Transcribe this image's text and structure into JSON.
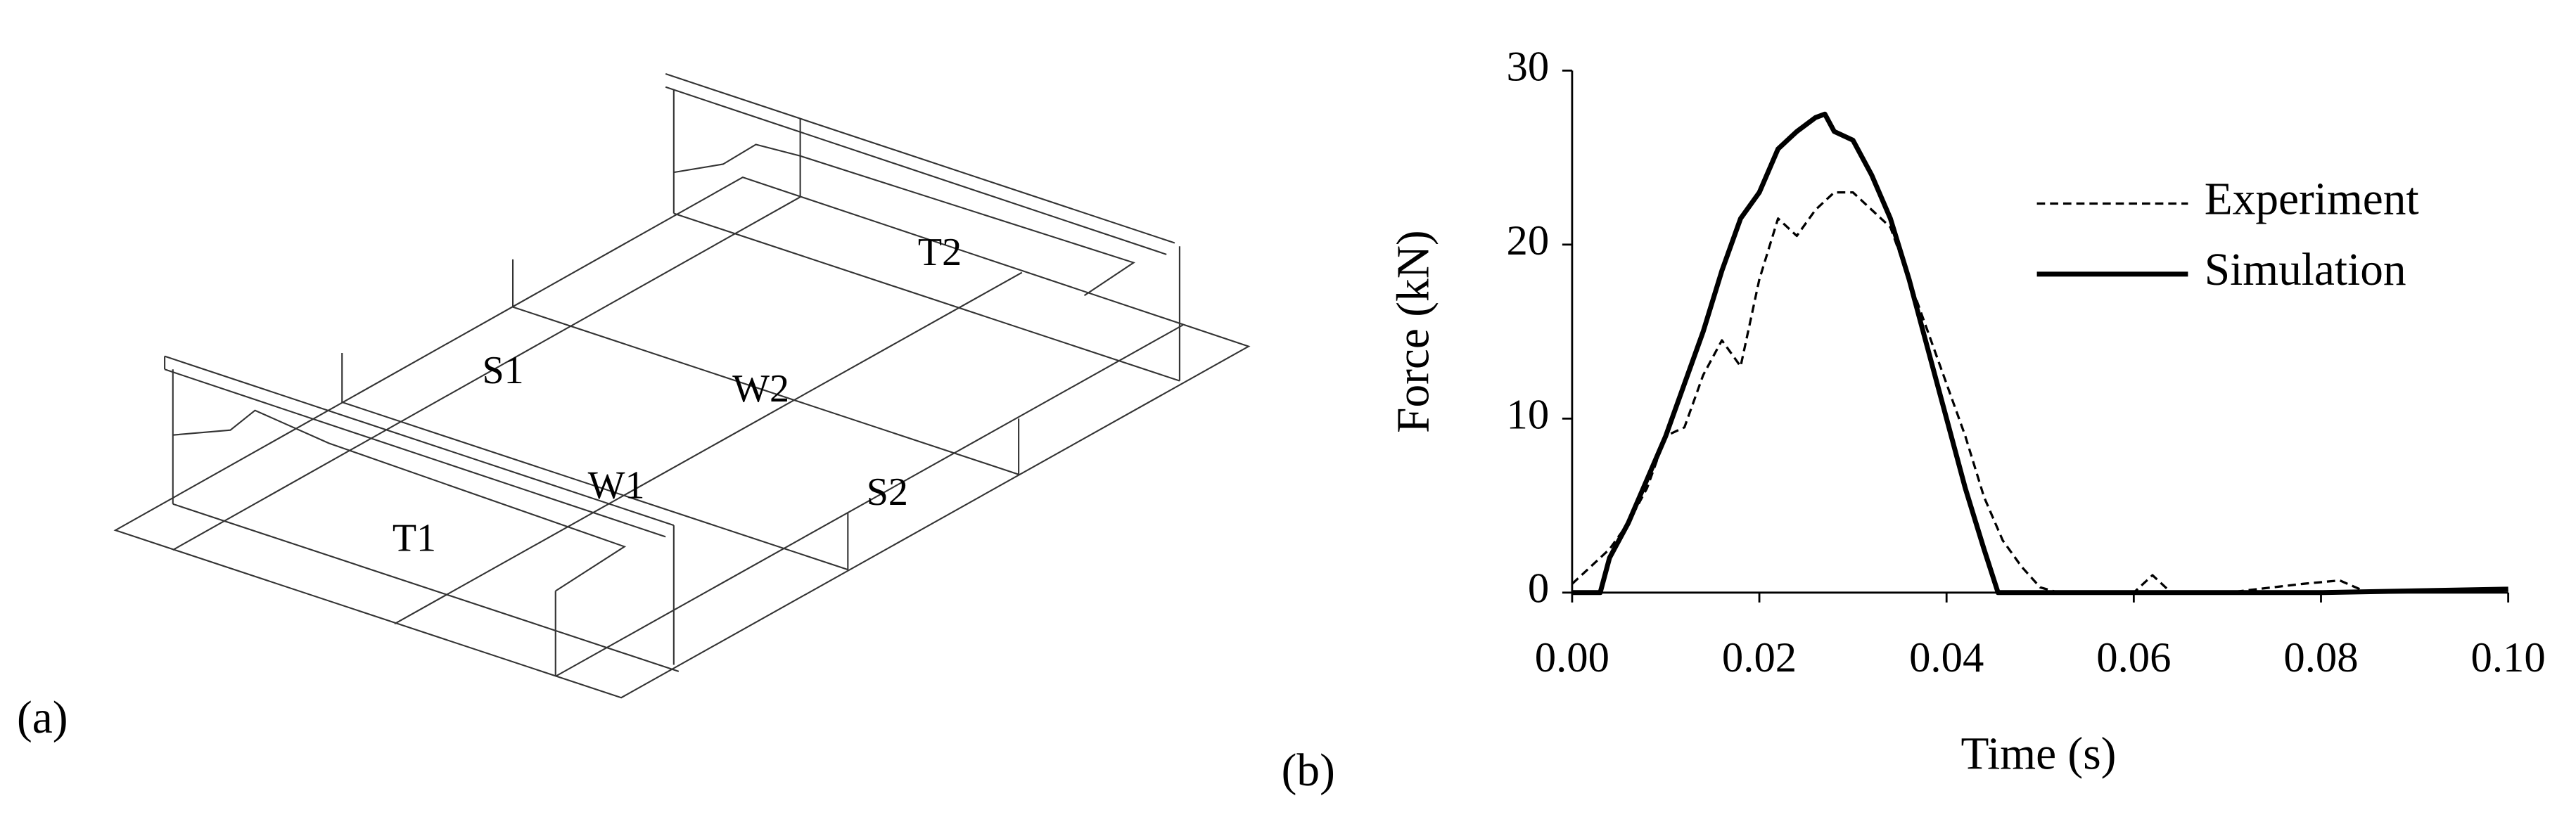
{
  "diagram": {
    "panel_label": "(a)",
    "labels": [
      "T1",
      "W1",
      "S2",
      "W2",
      "S1",
      "T2"
    ]
  },
  "chart_data": {
    "type": "line",
    "panel_label": "(b)",
    "x_label": "Time (s)",
    "y_label": "Force (kN)",
    "xlim": [
      0,
      0.1
    ],
    "ylim": [
      0,
      30
    ],
    "xticks": [
      {
        "value": 0,
        "label": "0.00"
      },
      {
        "value": 0.02,
        "label": "0.02"
      },
      {
        "value": 0.04,
        "label": "0.04"
      },
      {
        "value": 0.06,
        "label": "0.06"
      },
      {
        "value": 0.08,
        "label": "0.08"
      },
      {
        "value": 0.1,
        "label": "0.10"
      }
    ],
    "yticks": [
      0,
      10,
      20,
      30
    ],
    "legend": "upper right",
    "series": [
      {
        "name": "Experiment",
        "color": "#000000",
        "dash": true,
        "x": [
          0,
          0.002,
          0.004,
          0.006,
          0.008,
          0.01,
          0.012,
          0.014,
          0.016,
          0.018,
          0.02,
          0.022,
          0.024,
          0.026,
          0.028,
          0.03,
          0.032,
          0.034,
          0.036,
          0.038,
          0.04,
          0.042,
          0.044,
          0.046,
          0.048,
          0.05,
          0.052,
          0.06,
          0.062,
          0.064,
          0.07,
          0.078,
          0.082,
          0.085,
          0.1
        ],
        "values": [
          0.5,
          1.5,
          2.5,
          4,
          6,
          9,
          9.5,
          12.5,
          14.5,
          13,
          18,
          21.5,
          20.5,
          22,
          23,
          23,
          22,
          21,
          18,
          15,
          12,
          9,
          5.5,
          3,
          1.5,
          0.3,
          0,
          0,
          1,
          0,
          0,
          0.5,
          0.7,
          0,
          0.1
        ]
      },
      {
        "name": "Simulation",
        "color": "#000000",
        "dash": false,
        "x": [
          0,
          0.002,
          0.003,
          0.004,
          0.006,
          0.008,
          0.01,
          0.012,
          0.014,
          0.016,
          0.018,
          0.02,
          0.022,
          0.024,
          0.026,
          0.027,
          0.028,
          0.03,
          0.032,
          0.034,
          0.036,
          0.038,
          0.04,
          0.042,
          0.044,
          0.0455,
          0.05,
          0.06,
          0.08,
          0.1
        ],
        "values": [
          0,
          0,
          0,
          2,
          4,
          6.5,
          9,
          12,
          15,
          18.5,
          21.5,
          23,
          25.5,
          26.5,
          27.3,
          27.5,
          26.5,
          26,
          24,
          21.5,
          18,
          14,
          10,
          6,
          2.5,
          0,
          0,
          0,
          0,
          0.2
        ]
      }
    ]
  }
}
